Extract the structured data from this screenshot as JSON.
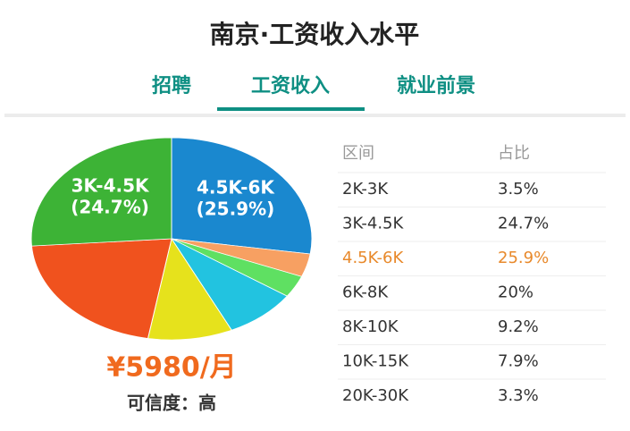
{
  "header": {
    "title": "南京·工资收入水平"
  },
  "tabs": [
    "招聘",
    "工资收入",
    "就业前景"
  ],
  "chart_data": {
    "type": "pie",
    "categories": [
      "4.5K-6K",
      "2K-3K",
      "20K-30K",
      "10K-15K",
      "8K-10K",
      "6K-8K",
      "3K-4.5K"
    ],
    "values": [
      25.9,
      3.5,
      3.3,
      7.9,
      9.2,
      20,
      24.7
    ],
    "value_labels": [
      "(25.9%)",
      null,
      null,
      null,
      null,
      null,
      "(24.7%)"
    ],
    "colors": [
      "#1a88cf",
      "#f7a062",
      "#5fe062",
      "#22c3e0",
      "#e6e21c",
      "#f0521e",
      "#3db336"
    ]
  },
  "salary": "¥5980/月",
  "credibility": "可信度：高",
  "table": {
    "header": [
      "区间",
      "占比"
    ],
    "rows": [
      [
        "2K-3K",
        "3.5%"
      ],
      [
        "3K-4.5K",
        "24.7%"
      ],
      [
        "4.5K-6K",
        "25.9%"
      ],
      [
        "6K-8K",
        "20%"
      ],
      [
        "8K-10K",
        "9.2%"
      ],
      [
        "10K-15K",
        "7.9%"
      ],
      [
        "20K-30K",
        "3.3%"
      ]
    ]
  }
}
